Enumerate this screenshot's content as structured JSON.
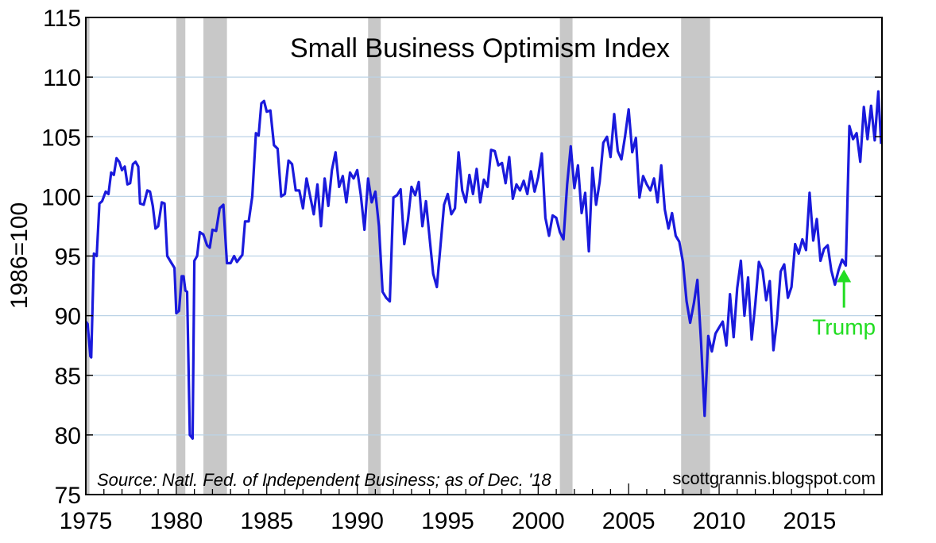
{
  "chart_data": {
    "type": "line",
    "title": "Small Business Optimism Index",
    "ylabel": "1986=100",
    "xlabel": "",
    "xlim": [
      1975,
      2019
    ],
    "ylim": [
      75,
      115
    ],
    "x_ticks": [
      1975,
      1980,
      1985,
      1990,
      1995,
      2000,
      2005,
      2010,
      2015
    ],
    "y_ticks": [
      75,
      80,
      85,
      90,
      95,
      100,
      105,
      110,
      115
    ],
    "grid": true,
    "source": "Source: Natl. Fed. of Independent Business; as of Dec. '18",
    "credit": "scottgrannis.blogspot.com",
    "annotation": {
      "text": "Trump",
      "x": 2016.9,
      "y": 94.0,
      "color": "#22dd22"
    },
    "recessions": [
      [
        1975.0,
        1975.2
      ],
      [
        1980.0,
        1980.5
      ],
      [
        1981.5,
        1982.8
      ],
      [
        1990.6,
        1991.3
      ],
      [
        2001.2,
        2001.9
      ],
      [
        2007.9,
        2009.5
      ]
    ],
    "line_color": "#1a1adc",
    "series": [
      {
        "x": [
          1975.0,
          1975.1,
          1975.25,
          1975.3,
          1975.45,
          1975.6,
          1975.75,
          1975.9,
          1976.1,
          1976.25,
          1976.4,
          1976.55,
          1976.7,
          1976.85,
          1977.0,
          1977.15,
          1977.3,
          1977.45,
          1977.6,
          1977.75,
          1977.9,
          1978.0,
          1978.2,
          1978.4,
          1978.55,
          1978.7,
          1978.85,
          1979.0,
          1979.2,
          1979.35,
          1979.5,
          1979.7,
          1979.9,
          1980.0,
          1980.15,
          1980.3,
          1980.4,
          1980.5,
          1980.6,
          1980.75,
          1980.9,
          1981.0,
          1981.15,
          1981.3,
          1981.5,
          1981.7,
          1981.85,
          1982.0,
          1982.2,
          1982.4,
          1982.6,
          1982.8,
          1983.0,
          1983.2,
          1983.35,
          1983.5,
          1983.65,
          1983.8,
          1984.0,
          1984.2,
          1984.4,
          1984.55,
          1984.7,
          1984.85,
          1985.0,
          1985.2,
          1985.4,
          1985.6,
          1985.8,
          1986.0,
          1986.2,
          1986.4,
          1986.6,
          1986.8,
          1987.0,
          1987.2,
          1987.4,
          1987.6,
          1987.8,
          1988.0,
          1988.2,
          1988.4,
          1988.6,
          1988.8,
          1989.0,
          1989.2,
          1989.4,
          1989.6,
          1989.8,
          1990.0,
          1990.2,
          1990.4,
          1990.6,
          1990.8,
          1991.0,
          1991.2,
          1991.4,
          1991.6,
          1991.8,
          1992.0,
          1992.2,
          1992.4,
          1992.6,
          1992.8,
          1993.0,
          1993.2,
          1993.4,
          1993.6,
          1993.8,
          1994.0,
          1994.2,
          1994.4,
          1994.6,
          1994.8,
          1995.0,
          1995.2,
          1995.4,
          1995.6,
          1995.8,
          1996.0,
          1996.2,
          1996.4,
          1996.6,
          1996.8,
          1997.0,
          1997.2,
          1997.4,
          1997.6,
          1997.8,
          1998.0,
          1998.2,
          1998.4,
          1998.6,
          1998.8,
          1999.0,
          1999.2,
          1999.4,
          1999.6,
          1999.8,
          2000.0,
          2000.2,
          2000.4,
          2000.6,
          2000.8,
          2001.0,
          2001.2,
          2001.4,
          2001.6,
          2001.8,
          2002.0,
          2002.2,
          2002.4,
          2002.6,
          2002.8,
          2003.0,
          2003.2,
          2003.4,
          2003.6,
          2003.8,
          2004.0,
          2004.2,
          2004.4,
          2004.6,
          2004.8,
          2005.0,
          2005.2,
          2005.4,
          2005.6,
          2005.8,
          2006.0,
          2006.2,
          2006.4,
          2006.6,
          2006.8,
          2007.0,
          2007.2,
          2007.4,
          2007.6,
          2007.8,
          2008.0,
          2008.2,
          2008.4,
          2008.6,
          2008.8,
          2009.0,
          2009.2,
          2009.4,
          2009.6,
          2009.8,
          2010.0,
          2010.2,
          2010.4,
          2010.6,
          2010.8,
          2011.0,
          2011.2,
          2011.4,
          2011.6,
          2011.8,
          2012.0,
          2012.2,
          2012.4,
          2012.6,
          2012.8,
          2013.0,
          2013.2,
          2013.4,
          2013.6,
          2013.8,
          2014.0,
          2014.2,
          2014.4,
          2014.6,
          2014.8,
          2015.0,
          2015.2,
          2015.4,
          2015.6,
          2015.8,
          2016.0,
          2016.2,
          2016.4,
          2016.6,
          2016.8,
          2017.0,
          2017.2,
          2017.4,
          2017.6,
          2017.8,
          2018.0,
          2018.2,
          2018.4,
          2018.6,
          2018.8,
          2018.95
        ],
        "y": [
          89.5,
          89.3,
          86.6,
          86.5,
          95.2,
          95.0,
          99.4,
          99.6,
          100.4,
          100.2,
          102.0,
          101.8,
          103.2,
          102.9,
          102.2,
          102.5,
          101.0,
          101.1,
          102.7,
          102.9,
          102.5,
          99.4,
          99.3,
          100.5,
          100.4,
          99.2,
          97.3,
          97.5,
          99.5,
          99.4,
          95.0,
          94.5,
          94.0,
          90.2,
          90.4,
          93.3,
          93.3,
          92.1,
          92.0,
          80.0,
          79.7,
          94.6,
          95.0,
          97.0,
          96.8,
          95.9,
          95.7,
          97.2,
          97.1,
          99.0,
          99.3,
          94.4,
          94.4,
          95.0,
          94.5,
          94.8,
          95.1,
          97.9,
          97.9,
          100.0,
          105.3,
          105.1,
          107.8,
          108.0,
          107.1,
          107.2,
          104.3,
          104.0,
          100.0,
          100.2,
          103.0,
          102.7,
          100.5,
          100.5,
          99.0,
          101.5,
          100.0,
          98.5,
          101.0,
          97.5,
          101.5,
          99.2,
          102.2,
          103.7,
          100.8,
          101.7,
          99.5,
          102.0,
          101.5,
          102.2,
          100.1,
          97.2,
          101.5,
          99.5,
          100.4,
          97.5,
          92.0,
          91.5,
          91.2,
          99.9,
          100.1,
          100.6,
          96.0,
          98.0,
          100.8,
          100.1,
          101.2,
          97.5,
          99.6,
          96.5,
          93.5,
          92.4,
          95.8,
          99.3,
          100.2,
          98.5,
          99.0,
          103.7,
          100.5,
          99.5,
          101.8,
          100.2,
          102.3,
          99.5,
          101.4,
          100.8,
          103.9,
          103.8,
          102.6,
          102.8,
          101.1,
          103.3,
          99.8,
          101.0,
          100.5,
          101.3,
          100.2,
          102.1,
          100.4,
          101.6,
          103.6,
          98.2,
          96.7,
          98.4,
          98.2,
          97.0,
          96.4,
          101.0,
          104.2,
          100.7,
          102.6,
          98.6,
          100.3,
          95.4,
          102.4,
          99.3,
          101.2,
          104.5,
          105.0,
          103.3,
          106.9,
          103.8,
          103.1,
          105.0,
          107.3,
          103.7,
          104.9,
          99.9,
          101.7,
          101.0,
          100.5,
          101.5,
          99.5,
          102.6,
          98.9,
          97.3,
          98.6,
          96.7,
          96.2,
          94.5,
          91.2,
          89.4,
          91.0,
          93.0,
          87.8,
          81.6,
          88.3,
          87.0,
          88.5,
          89.0,
          89.5,
          87.5,
          91.8,
          88.2,
          92.3,
          94.6,
          90.0,
          93.2,
          88.0,
          91.0,
          94.5,
          93.8,
          91.3,
          92.9,
          87.1,
          89.6,
          93.7,
          94.3,
          91.5,
          92.4,
          96.0,
          95.2,
          96.4,
          95.5,
          100.3,
          96.3,
          98.1,
          94.6,
          95.6,
          95.9,
          93.8,
          92.6,
          93.8,
          94.7,
          94.2,
          105.9,
          104.8,
          105.3,
          102.9,
          107.5,
          104.8,
          107.6,
          104.7,
          108.8,
          104.4
        ]
      }
    ]
  }
}
